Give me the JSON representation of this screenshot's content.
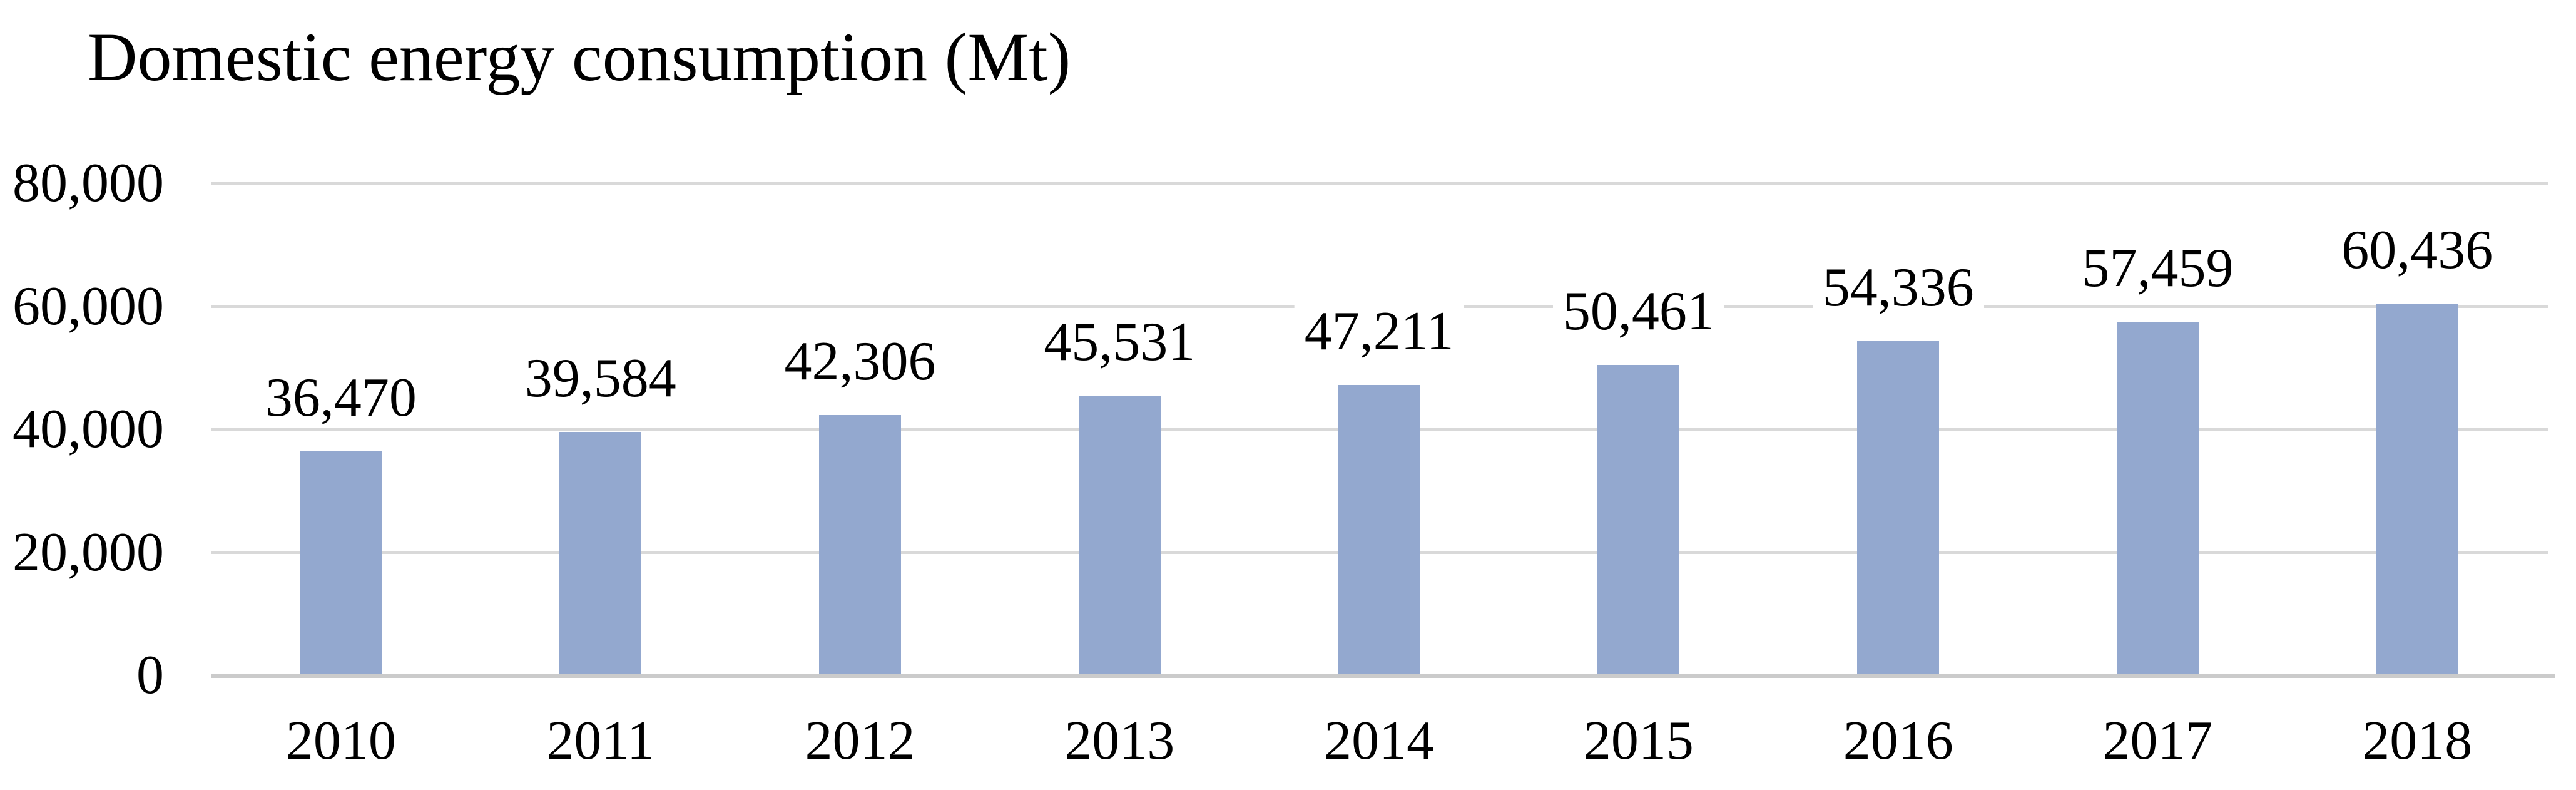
{
  "chart_data": {
    "type": "bar",
    "title": "Domestic energy consumption (Mt)",
    "categories": [
      "2010",
      "2011",
      "2012",
      "2013",
      "2014",
      "2015",
      "2016",
      "2017",
      "2018"
    ],
    "values": [
      36470,
      39584,
      42306,
      45531,
      47211,
      50461,
      54336,
      57459,
      60436
    ],
    "value_labels": [
      "36,470",
      "39,584",
      "42,306",
      "45,531",
      "47,211",
      "50,461",
      "54,336",
      "57,459",
      "60,436"
    ],
    "series_name": "Domestic energy consumption",
    "xlabel": "",
    "ylabel": "",
    "ylim": [
      0,
      80000
    ],
    "y_ticks": [
      {
        "value": 0,
        "label": "0"
      },
      {
        "value": 20000,
        "label": "20,000"
      },
      {
        "value": 40000,
        "label": "40,000"
      },
      {
        "value": 60000,
        "label": "60,000"
      },
      {
        "value": 80000,
        "label": "80,000"
      }
    ],
    "grid": true,
    "legend": "none",
    "colors": {
      "bar": "#93A8CF",
      "gridline": "#D9D9D9",
      "baseline": "#CBCBCB",
      "text": "#000000",
      "background": "#FFFFFF",
      "label_background": "#FFFFFF"
    }
  }
}
